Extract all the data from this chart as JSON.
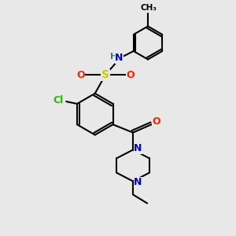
{
  "bg_color": "#e8e8e8",
  "bond_color": "#000000",
  "bond_lw": 1.5,
  "atom_colors": {
    "N": "#0000cc",
    "O": "#ff2200",
    "S": "#cccc00",
    "Cl": "#22bb00",
    "H": "#3a7a7a",
    "C": "#000000"
  },
  "font_size": 9,
  "fig_size": [
    3.0,
    3.0
  ],
  "dpi": 100
}
